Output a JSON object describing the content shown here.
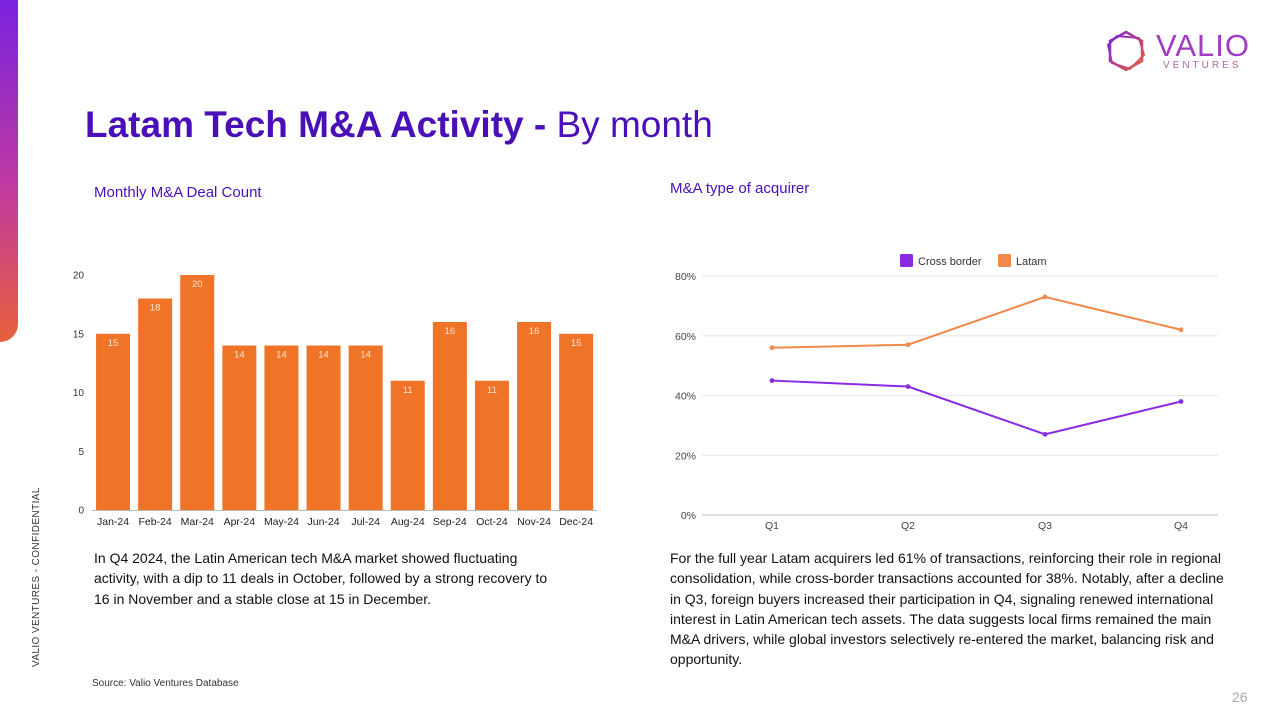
{
  "header": {
    "title_bold": "Latam Tech M&A Activity -",
    "title_light": " By month",
    "logo_word": "VALIO",
    "logo_sub": "VENTURES"
  },
  "side_label": "VALIO VENTURES - CONFIDENTIAL",
  "left_panel": {
    "heading": "Monthly M&A Deal Count",
    "body": "In Q4 2024, the Latin American tech M&A market showed fluctuating activity, with a dip to 11 deals in October, followed by a strong recovery to 16 in November and a stable close at 15 in December."
  },
  "right_panel": {
    "heading": "M&A type of acquirer",
    "body": "For the full year Latam acquirers led 61% of transactions, reinforcing their role in regional consolidation, while cross-border transactions accounted for 38%. Notably, after a decline in Q3, foreign buyers increased their participation in Q4, signaling renewed international interest in Latin American tech assets. The data suggests local firms remained the main M&A drivers, while global investors selectively re-entered the market, balancing risk and opportunity."
  },
  "footer": {
    "source": "Source: Valio Ventures Database",
    "page_number": "26"
  },
  "colors": {
    "brand_purple": "#4a10b8",
    "bar_orange": "#f07428",
    "cross_border": "#8a2be2",
    "latam": "#f0894a"
  },
  "chart_data": [
    {
      "type": "bar",
      "categories": [
        "Jan-24",
        "Feb-24",
        "Mar-24",
        "Apr-24",
        "May-24",
        "Jun-24",
        "Jul-24",
        "Aug-24",
        "Sep-24",
        "Oct-24",
        "Nov-24",
        "Dec-24"
      ],
      "values": [
        15,
        18,
        20,
        14,
        14,
        14,
        14,
        11,
        16,
        11,
        16,
        15
      ],
      "ylim": [
        0,
        20
      ],
      "yticks": [
        0,
        5,
        10,
        15,
        20
      ],
      "data_labels": true,
      "grid": false
    },
    {
      "type": "line",
      "categories": [
        "Q1",
        "Q2",
        "Q3",
        "Q4"
      ],
      "series": [
        {
          "name": "Cross border",
          "values": [
            0.45,
            0.43,
            0.27,
            0.38
          ]
        },
        {
          "name": "Latam",
          "values": [
            0.56,
            0.57,
            0.73,
            0.62
          ]
        }
      ],
      "ylim": [
        0,
        0.8
      ],
      "yticks": [
        "0%",
        "20%",
        "40%",
        "60%",
        "80%"
      ],
      "legend": "top-center",
      "grid": true
    }
  ]
}
